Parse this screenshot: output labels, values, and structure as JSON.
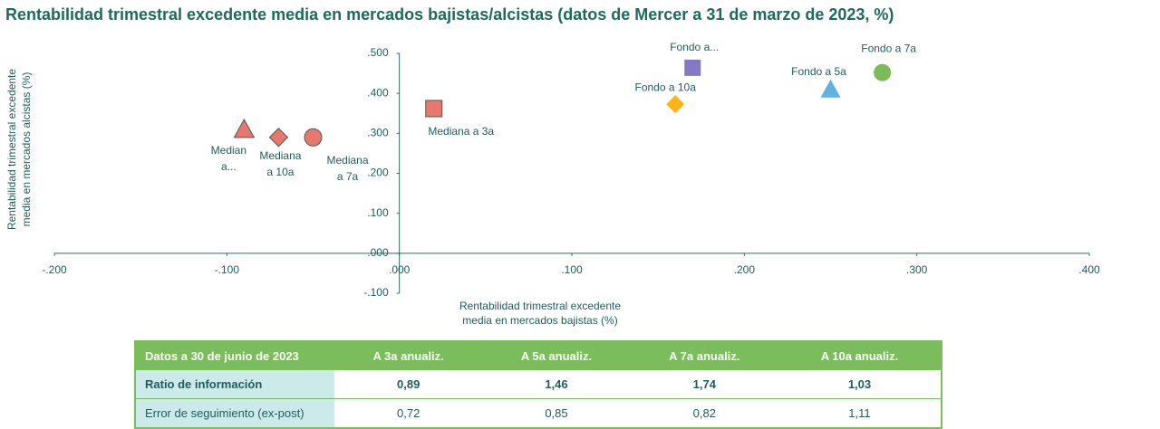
{
  "chart_data": {
    "type": "scatter",
    "title": "Rentabilidad trimestral excedente media en mercados bajistas/alcistas (datos de Mercer a 31 de marzo de 2023, %)",
    "x_label": [
      "Rentabilidad trimestral excedente",
      "media en mercados bajistas (%)"
    ],
    "y_label": [
      "Rentabilidad trimestral excedente",
      "media en mercados alcistas (%)"
    ],
    "xlim": [
      -0.2,
      0.4
    ],
    "ylim": [
      -0.1,
      0.5
    ],
    "xticks": [
      {
        "value": -0.2,
        "label": "-.200"
      },
      {
        "value": -0.1,
        "label": "-.100"
      },
      {
        "value": 0,
        "label": ".000"
      },
      {
        "value": 0.1,
        "label": ".100"
      },
      {
        "value": 0.2,
        "label": ".200"
      },
      {
        "value": 0.3,
        "label": ".300"
      },
      {
        "value": 0.4,
        "label": ".400"
      }
    ],
    "yticks": [
      {
        "value": -0.1,
        "label": "-.100"
      },
      {
        "value": 0,
        "label": ".000"
      },
      {
        "value": 0.1,
        "label": ".100"
      },
      {
        "value": 0.2,
        "label": ".200"
      },
      {
        "value": 0.3,
        "label": ".300"
      },
      {
        "value": 0.4,
        "label": ".400"
      },
      {
        "value": 0.5,
        "label": ".500"
      }
    ],
    "series": [
      {
        "label": [
          "Fondo a..."
        ],
        "marker": "square",
        "color": "#8479c4",
        "x": [
          0.17
        ],
        "values": [
          0.464
        ]
      },
      {
        "label": [
          "Fondo a 10a"
        ],
        "marker": "diamond",
        "color": "#fdb515",
        "x": [
          0.16
        ],
        "values": [
          0.373
        ]
      },
      {
        "label": [
          "Fondo a 5a"
        ],
        "marker": "triangle",
        "color": "#5eb3e4",
        "x": [
          0.25
        ],
        "values": [
          0.41
        ]
      },
      {
        "label": [
          "Fondo a 7a"
        ],
        "marker": "circle",
        "color": "#7cbb5a",
        "x": [
          0.28
        ],
        "values": [
          0.452
        ]
      },
      {
        "label": [
          "Mediana a 3a"
        ],
        "marker": "square",
        "color": "#e8776e",
        "x": [
          0.02
        ],
        "values": [
          0.362
        ]
      },
      {
        "label": [
          "Median",
          "a..."
        ],
        "marker": "triangle",
        "color": "#e8776e",
        "x": [
          -0.09
        ],
        "values": [
          0.31
        ]
      },
      {
        "label": [
          "Mediana",
          "a 10a"
        ],
        "marker": "diamond",
        "color": "#e8776e",
        "x": [
          -0.07
        ],
        "values": [
          0.29
        ]
      },
      {
        "label": [
          "Mediana",
          "a 7a"
        ],
        "marker": "circle",
        "color": "#e8776e",
        "x": [
          -0.05
        ],
        "values": [
          0.29
        ]
      }
    ]
  },
  "table": {
    "header": [
      "Datos a 30 de junio de 2023",
      "A 3a anualiz.",
      "A 5a anualiz.",
      "A 7a anualiz.",
      "A 10a anualiz."
    ],
    "rows": [
      [
        "Ratio de información",
        "0,89",
        "1,46",
        "1,74",
        "1,03"
      ],
      [
        "Error de seguimiento (ex-post)",
        "0,72",
        "0,85",
        "0,82",
        "1,11"
      ]
    ]
  }
}
